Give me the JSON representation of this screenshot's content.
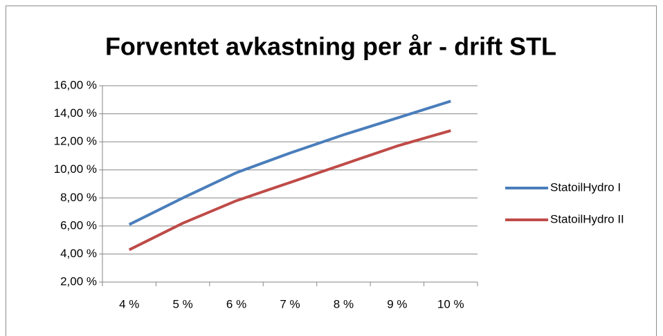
{
  "chart_data": {
    "type": "line",
    "title": "Forventet avkastning per år - drift STL",
    "categories": [
      "4 %",
      "5 %",
      "6 %",
      "7 %",
      "8 %",
      "9 %",
      "10 %"
    ],
    "series": [
      {
        "name": "StatoilHydro I",
        "color": "#4a7ebb",
        "values": [
          6.1,
          8.0,
          9.8,
          11.2,
          12.5,
          13.7,
          14.9
        ]
      },
      {
        "name": "StatoilHydro II",
        "color": "#be4b48",
        "values": [
          4.3,
          6.2,
          7.8,
          9.1,
          10.4,
          11.7,
          12.8
        ]
      }
    ],
    "ylim": [
      2,
      16
    ],
    "yticks": [
      {
        "value": 2,
        "label": "2,00 %"
      },
      {
        "value": 4,
        "label": "4,00 %"
      },
      {
        "value": 6,
        "label": "6,00 %"
      },
      {
        "value": 8,
        "label": "8,00 %"
      },
      {
        "value": 10,
        "label": "10,00 %"
      },
      {
        "value": 12,
        "label": "12,00 %"
      },
      {
        "value": 14,
        "label": "14,00 %"
      },
      {
        "value": 16,
        "label": "16,00 %"
      }
    ],
    "grid": true,
    "legend": "right"
  }
}
